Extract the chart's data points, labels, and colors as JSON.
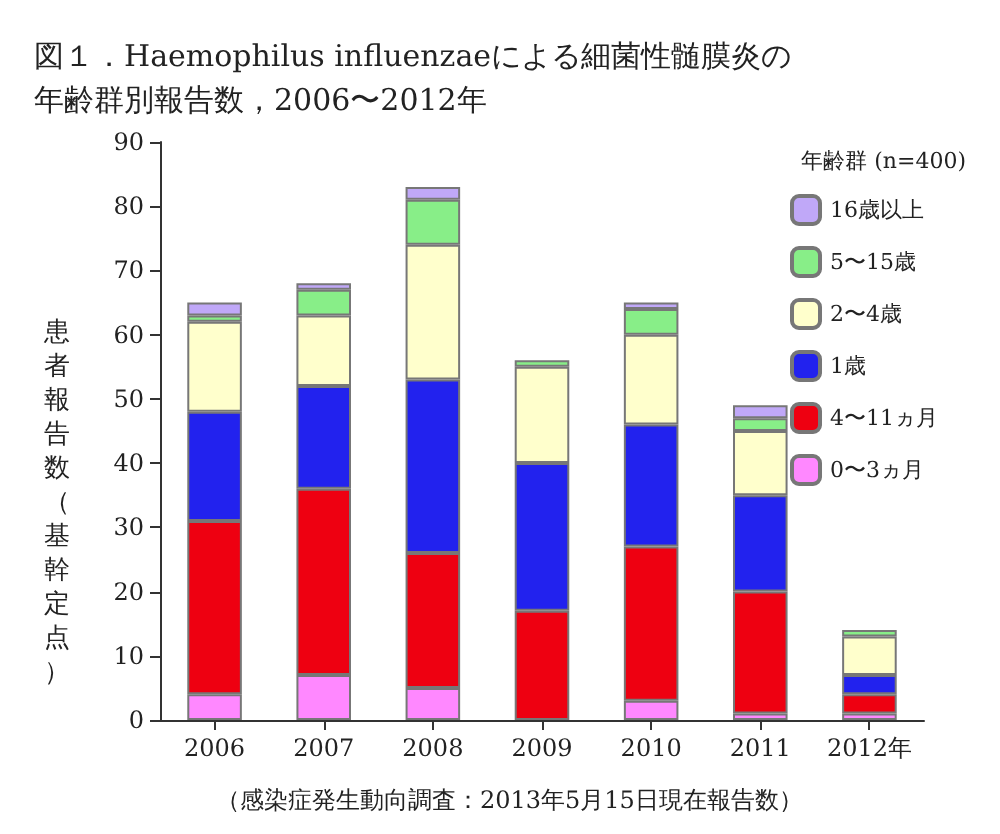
{
  "chart_data": {
    "type": "bar",
    "stacked": true,
    "title": "図１．Haemophilus influenzaeによる細菌性髄膜炎の年齢群別報告数，2006〜2012年",
    "ylabel": "患者報告数（基幹定点）",
    "legend_title": "年齢群 (n=400)",
    "annotations": [
      "（感染症発生動向調査：2013年5月15日現在報告数）"
    ],
    "categories": [
      "2006",
      "2007",
      "2008",
      "2009",
      "2010",
      "2011",
      "2012年"
    ],
    "series": [
      {
        "name": "0〜3ヵ月",
        "color": "#ff88ff",
        "values": [
          4,
          7,
          5,
          0,
          3,
          1,
          1
        ]
      },
      {
        "name": "4〜11ヵ月",
        "color": "#ee0011",
        "values": [
          27,
          29,
          21,
          17,
          24,
          19,
          3
        ]
      },
      {
        "name": "1歳",
        "color": "#2222ee",
        "values": [
          17,
          16,
          27,
          23,
          19,
          15,
          3
        ]
      },
      {
        "name": "2〜4歳",
        "color": "#ffffcc",
        "values": [
          14,
          11,
          21,
          15,
          14,
          10,
          6
        ]
      },
      {
        "name": "5〜15歳",
        "color": "#88ee88",
        "values": [
          1,
          4,
          7,
          1,
          4,
          2,
          1
        ]
      },
      {
        "name": "16歳以上",
        "color": "#c0a8f8",
        "values": [
          2,
          1,
          2,
          0,
          1,
          2,
          0
        ]
      }
    ],
    "ylim": [
      0,
      90
    ],
    "yticks": [
      0,
      10,
      20,
      30,
      40,
      50,
      60,
      70,
      80,
      90
    ],
    "grid": false,
    "legend": "top right"
  }
}
